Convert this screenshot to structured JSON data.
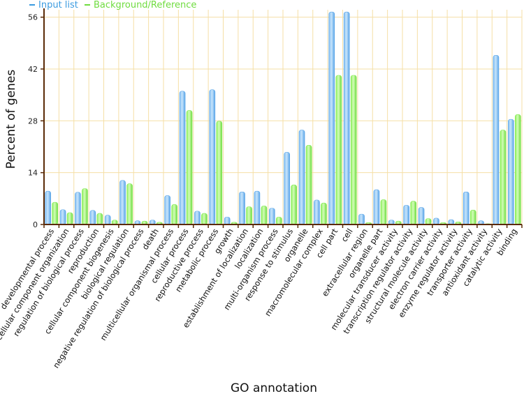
{
  "chart_data": {
    "type": "bar",
    "title": "",
    "xlabel": "GO annotation",
    "ylabel": "Percent of genes",
    "ylim": [
      0,
      58
    ],
    "yticks": [
      0,
      14,
      28,
      42,
      56
    ],
    "grid": true,
    "legend_position": "top-left",
    "categories": [
      "developmental process",
      "cellular component organization",
      "regulation of biological process",
      "reproduction",
      "cellular component biogenesis",
      "biological regulation",
      "negative regulation of biological process",
      "death",
      "multicellular organismal process",
      "cellular process",
      "reproductive process",
      "metabolic process",
      "growth",
      "establishment of localization",
      "localization",
      "multi-organism process",
      "response to stimulus",
      "organelle",
      "macromolecular complex",
      "cell part",
      "cell",
      "extracellular region",
      "organelle part",
      "molecular transducer activity",
      "transcription regulator activity",
      "structural molecule activity",
      "electron carrier activity",
      "enzyme regulator activity",
      "transporter activity",
      "antioxidant activity",
      "catalytic activity",
      "binding"
    ],
    "series": [
      {
        "name": "Input list",
        "color": "#5aa5e8",
        "values": [
          9.0,
          4.0,
          8.7,
          3.8,
          2.5,
          11.9,
          1.0,
          1.2,
          7.8,
          36.0,
          3.6,
          36.4,
          2.0,
          8.8,
          9.0,
          4.4,
          19.5,
          25.5,
          6.6,
          57.4,
          57.4,
          2.8,
          9.4,
          1.2,
          5.2,
          4.6,
          1.7,
          1.3,
          8.8,
          1.0,
          45.7,
          28.4
        ]
      },
      {
        "name": "Background/Reference",
        "color": "#7fea4f",
        "values": [
          6.0,
          3.2,
          9.7,
          3.0,
          1.2,
          11.0,
          0.9,
          0.6,
          5.4,
          30.8,
          3.0,
          27.9,
          0.6,
          4.8,
          5.0,
          2.0,
          10.7,
          21.4,
          5.8,
          40.3,
          40.3,
          0.5,
          6.7,
          0.9,
          6.3,
          1.6,
          0.5,
          0.7,
          3.9,
          0.2,
          25.5,
          29.7
        ]
      }
    ]
  },
  "legend": {
    "items": [
      {
        "label": "Input list",
        "color": "#3b9be0"
      },
      {
        "label": "Background/Reference",
        "color": "#6fdc3f"
      }
    ]
  }
}
